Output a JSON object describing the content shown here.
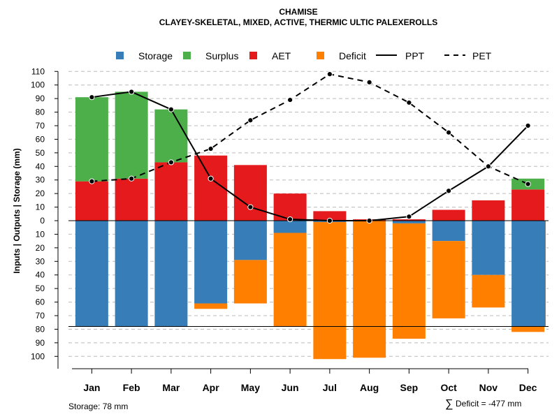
{
  "chart_data": {
    "type": "bar",
    "title": "CHAMISE",
    "subtitle": "CLAYEY-SKELETAL, MIXED, ACTIVE, THERMIC ULTIC PALEXEROLLS",
    "ylabel": "Inputs | Outputs | Storage    (mm)",
    "xlabel": "",
    "ylim": [
      -110,
      110
    ],
    "ytick_values": [
      -100,
      -90,
      -80,
      -70,
      -60,
      -50,
      -40,
      -30,
      -20,
      -10,
      0,
      10,
      20,
      30,
      40,
      50,
      60,
      70,
      80,
      90,
      100,
      110
    ],
    "ytick_labels": [
      "100",
      "90",
      "80",
      "70",
      "60",
      "50",
      "40",
      "30",
      "20",
      "10",
      "0",
      "10",
      "20",
      "30",
      "40",
      "50",
      "60",
      "70",
      "80",
      "90",
      "100",
      "110"
    ],
    "categories": [
      "Jan",
      "Feb",
      "Mar",
      "Apr",
      "May",
      "Jun",
      "Jul",
      "Aug",
      "Sep",
      "Oct",
      "Nov",
      "Dec"
    ],
    "legend_placement": "top",
    "legend": {
      "storage": "Storage",
      "surplus": "Surplus",
      "aet": "AET",
      "deficit": "Deficit",
      "ppt": "PPT",
      "pet": "PET"
    },
    "colors": {
      "storage": "#377EB8",
      "surplus": "#4DAF4A",
      "aet": "#E41A1C",
      "deficit": "#FF7F00",
      "line": "#000000",
      "grid": "#bbbbbb"
    },
    "series": [
      {
        "name": "Storage",
        "values": [
          78,
          78,
          78,
          61,
          29,
          9,
          1,
          0,
          2,
          15,
          40,
          78
        ]
      },
      {
        "name": "Surplus",
        "values": [
          62,
          64,
          39,
          0,
          0,
          0,
          0,
          0,
          0,
          0,
          0,
          8
        ]
      },
      {
        "name": "AET",
        "values": [
          29,
          31,
          43,
          48,
          41,
          20,
          7,
          1,
          1,
          8,
          15,
          23
        ]
      },
      {
        "name": "Deficit",
        "values": [
          0,
          0,
          0,
          4,
          32,
          69,
          101,
          101,
          85,
          57,
          24,
          4
        ]
      },
      {
        "name": "PPT",
        "values": [
          91,
          95,
          82,
          31,
          10,
          1,
          0,
          0,
          3,
          22,
          40,
          70
        ]
      },
      {
        "name": "PET",
        "values": [
          29,
          31,
          43,
          53,
          74,
          89,
          108,
          102,
          87,
          65,
          40,
          27
        ]
      }
    ],
    "storage_capacity": 78,
    "footer_left": "Storage: 78 mm",
    "footer_right_symbol": "∑",
    "footer_right": "Deficit = -477 mm"
  }
}
